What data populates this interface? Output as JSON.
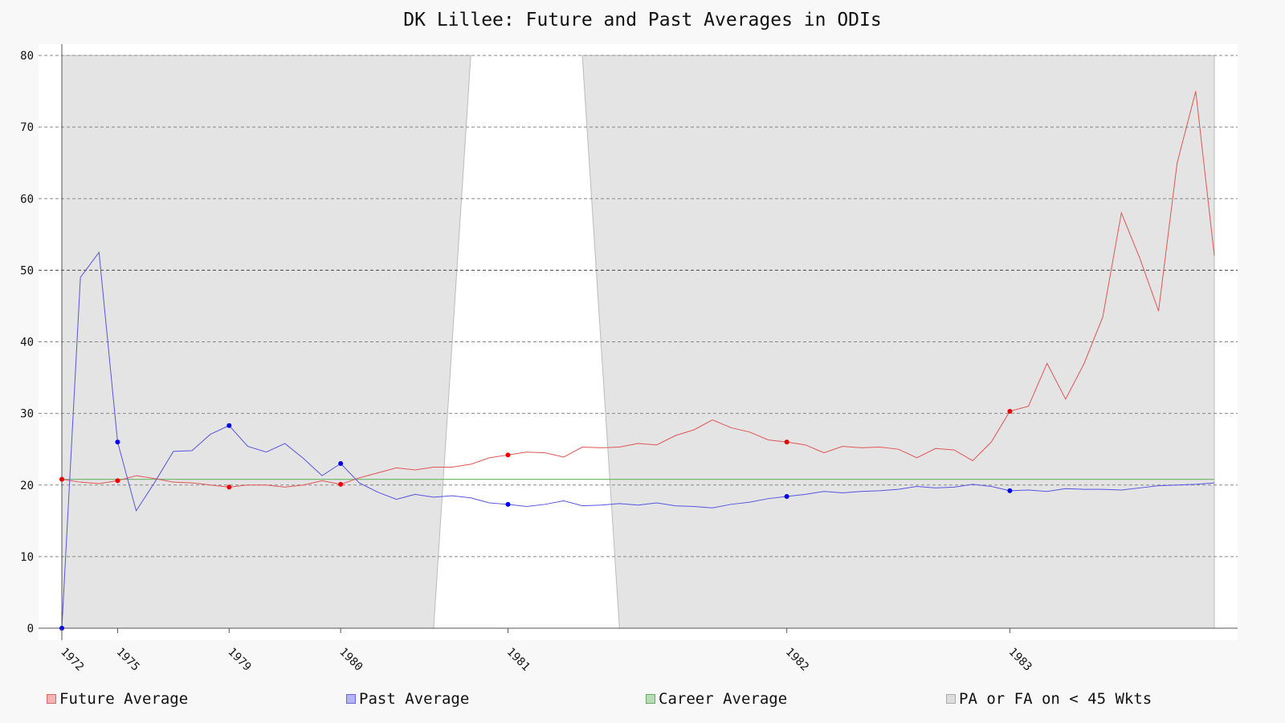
{
  "chart_data": {
    "type": "line",
    "title": "DK Lillee: Future and Past Averages in ODIs",
    "ylim": [
      0,
      80
    ],
    "yticks": [
      0,
      10,
      20,
      30,
      40,
      50,
      60,
      70,
      80
    ],
    "x_count": 63,
    "xticks": [
      {
        "index": 0,
        "label": "1972"
      },
      {
        "index": 3,
        "label": "1975"
      },
      {
        "index": 9,
        "label": "1979"
      },
      {
        "index": 15,
        "label": "1980"
      },
      {
        "index": 24,
        "label": "1981"
      },
      {
        "index": 39,
        "label": "1982"
      },
      {
        "index": 51,
        "label": "1983"
      }
    ],
    "grid": true,
    "legend_position": "bottom",
    "series": [
      {
        "name": "Future Average",
        "color": "#e05555",
        "values": [
          20.8,
          20.4,
          20.2,
          20.6,
          21.3,
          20.9,
          20.4,
          20.3,
          20.0,
          19.7,
          20.0,
          20.0,
          19.7,
          20.0,
          20.6,
          20.1,
          21.0,
          21.7,
          22.4,
          22.1,
          22.5,
          22.5,
          22.9,
          23.8,
          24.2,
          24.6,
          24.5,
          23.9,
          25.3,
          25.2,
          25.3,
          25.8,
          25.6,
          26.9,
          27.7,
          29.1,
          28.0,
          27.4,
          26.3,
          26.0,
          25.6,
          24.5,
          25.4,
          25.2,
          25.3,
          25.0,
          23.8,
          25.1,
          24.9,
          23.4,
          26.0,
          30.3,
          31.0,
          37.0,
          32.0,
          37.0,
          43.5,
          58.0,
          51.6,
          44.3,
          65.0,
          75.0,
          52.0
        ]
      },
      {
        "name": "Past Average",
        "color": "#5555e0",
        "values": [
          0,
          49.0,
          52.5,
          26.0,
          16.4,
          20.4,
          24.7,
          24.8,
          27.1,
          28.3,
          25.4,
          24.6,
          25.8,
          23.7,
          21.3,
          23.0,
          20.3,
          19.0,
          18.0,
          18.7,
          18.3,
          18.5,
          18.2,
          17.5,
          17.3,
          17.0,
          17.3,
          17.8,
          17.1,
          17.2,
          17.4,
          17.2,
          17.5,
          17.1,
          17.0,
          16.8,
          17.3,
          17.6,
          18.1,
          18.4,
          18.7,
          19.1,
          18.9,
          19.1,
          19.2,
          19.4,
          19.8,
          19.6,
          19.7,
          20.1,
          19.8,
          19.2,
          19.3,
          19.1,
          19.5,
          19.4,
          19.4,
          19.3,
          19.6,
          19.9,
          20.0,
          20.1,
          20.3
        ]
      },
      {
        "name": "Career Average",
        "color": "#77b877",
        "values": [
          20.8,
          20.8
        ]
      }
    ],
    "shaded_region_name": "PA or FA on < 45 Wkts",
    "unshaded_ranges": [
      [
        20,
        30
      ]
    ],
    "markers": [
      {
        "index": 0,
        "series": "Future Average"
      },
      {
        "index": 3,
        "series": "Future Average"
      },
      {
        "index": 9,
        "series": "Future Average"
      },
      {
        "index": 15,
        "series": "Future Average"
      },
      {
        "index": 24,
        "series": "Future Average"
      },
      {
        "index": 39,
        "series": "Future Average"
      },
      {
        "index": 51,
        "series": "Future Average"
      },
      {
        "index": 0,
        "series": "Past Average"
      },
      {
        "index": 3,
        "series": "Past Average"
      },
      {
        "index": 9,
        "series": "Past Average"
      },
      {
        "index": 15,
        "series": "Past Average"
      },
      {
        "index": 24,
        "series": "Past Average"
      },
      {
        "index": 39,
        "series": "Past Average"
      },
      {
        "index": 51,
        "series": "Past Average"
      }
    ]
  },
  "legend": {
    "items": [
      {
        "label": "Future Average",
        "fill": "#f4b4b4",
        "border": "#d66"
      },
      {
        "label": "Past Average",
        "fill": "#b4b4f4",
        "border": "#66d"
      },
      {
        "label": "Career Average",
        "fill": "#b8dcb8",
        "border": "#6a6"
      },
      {
        "label": "PA or FA on < 45 Wkts",
        "fill": "#dddddd",
        "border": "#aaa"
      }
    ]
  }
}
